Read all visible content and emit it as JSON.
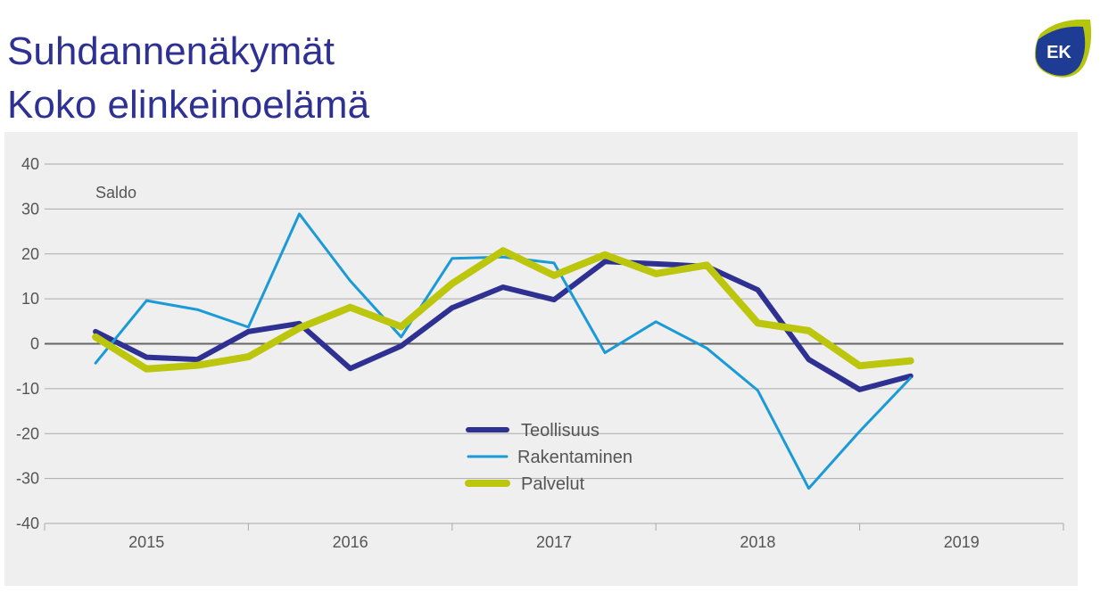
{
  "header": {
    "title_line1": "Suhdannenäkymät",
    "title_line2": "Koko elinkeinoelämä"
  },
  "logo": {
    "text": "EK",
    "colors": {
      "blue": "#1f3c95",
      "green": "#b5c40c"
    }
  },
  "chart_data": {
    "type": "line",
    "ylabel": "Saldo",
    "ylim": [
      -40,
      40
    ],
    "yticks": [
      40,
      30,
      20,
      10,
      0,
      -10,
      -20,
      -30,
      -40
    ],
    "xlim": [
      2015,
      2020
    ],
    "xtick_labels": [
      "2015",
      "2016",
      "2017",
      "2018",
      "2019"
    ],
    "grid": true,
    "legend_placement": "bottom-center",
    "x": [
      2015.25,
      2015.5,
      2015.75,
      2016.0,
      2016.25,
      2016.5,
      2016.75,
      2017.0,
      2017.25,
      2017.5,
      2017.75,
      2018.0,
      2018.25,
      2018.5,
      2018.75,
      2019.0,
      2019.25
    ],
    "series": [
      {
        "name": "Teollisuus",
        "color": "#2e3192",
        "values": [
          2.7,
          -3,
          -3.5,
          2.7,
          4.5,
          -5.5,
          -0.5,
          8,
          12.6,
          9.8,
          18.3,
          17.8,
          17.2,
          12,
          -3.5,
          -10.2,
          -7.2
        ]
      },
      {
        "name": "Rakentaminen",
        "color": "#1a9ad6",
        "values": [
          -4.3,
          9.6,
          7.6,
          3.7,
          28.9,
          14,
          1.5,
          19,
          19.3,
          18,
          -2,
          4.9,
          -1,
          -10.4,
          -32.2,
          -19.5,
          -7.6
        ]
      },
      {
        "name": "Palvelut",
        "color": "#bcc60c",
        "values": [
          1.5,
          -5.6,
          -4.8,
          -2.9,
          3.5,
          8.1,
          3.8,
          13.4,
          20.7,
          15.2,
          19.8,
          15.6,
          17.5,
          4.6,
          2.9,
          -4.9,
          -3.8
        ]
      }
    ]
  }
}
